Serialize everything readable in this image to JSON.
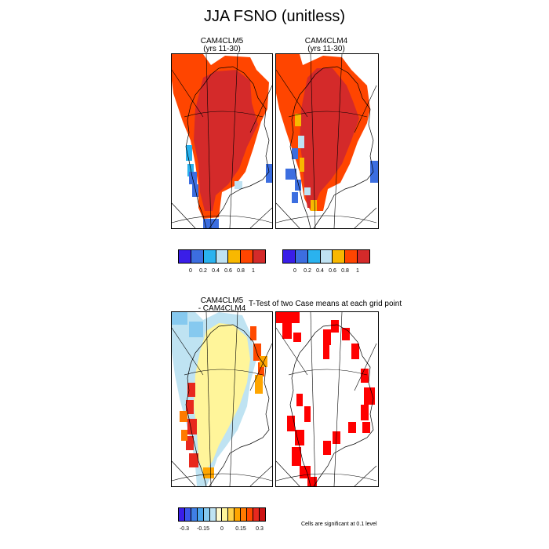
{
  "figure": {
    "title": "JJA FSNO (unitless)"
  },
  "panels": {
    "case1": {
      "title_line1": "CAM4CLM5",
      "title_line2": "(yrs 11-30)"
    },
    "case2": {
      "title_line1": "CAM4CLM4",
      "title_line2": "(yrs 11-30)"
    },
    "diff": {
      "title_line1": "CAM4CLM5",
      "title_line2": "- CAM4CLM4"
    },
    "ttest": {
      "title": "T-Test of two Case means at each grid point"
    }
  },
  "colorbars": {
    "top": {
      "colors": [
        "#3a1ee8",
        "#3c6ee0",
        "#2ab2ee",
        "#bfe2f2",
        "#f8b800",
        "#ff4500",
        "#d42a2a"
      ],
      "labels": [
        "0",
        "0.2",
        "0.4",
        "0.6",
        "0.8",
        "1"
      ]
    },
    "diff": {
      "colors": [
        "#3a1ee8",
        "#3a55ea",
        "#3f7fe6",
        "#4aa6ee",
        "#86c9ef",
        "#bfe3f2",
        "#fffbd0",
        "#fff59a",
        "#ffd24a",
        "#ffa500",
        "#ff7a00",
        "#ff4a00",
        "#e8281e",
        "#cc1414"
      ],
      "labels": [
        "-0.3",
        "-0.15",
        "0",
        "0.15",
        "0.3"
      ]
    }
  },
  "note": "Cells are significant at 0.1 level",
  "colors": {
    "fsno_high": "#d42a2a",
    "fsno_mid": "#ff4500",
    "significant": "#ff0000"
  }
}
